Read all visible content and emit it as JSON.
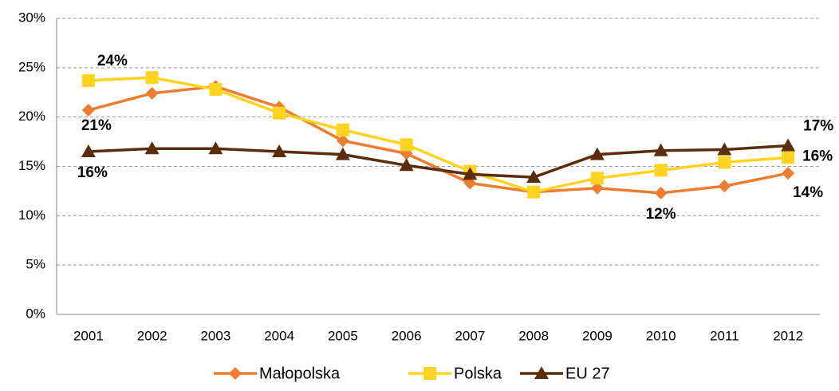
{
  "chart_data": {
    "type": "line",
    "categories": [
      "2001",
      "2002",
      "2003",
      "2004",
      "2005",
      "2006",
      "2007",
      "2008",
      "2009",
      "2010",
      "2011",
      "2012"
    ],
    "series": [
      {
        "name": "Małopolska",
        "color": "#ed7d31",
        "marker": "diamond",
        "values": [
          20.7,
          22.4,
          23.1,
          21.0,
          17.6,
          16.3,
          13.3,
          12.4,
          12.8,
          12.3,
          13.0,
          14.3
        ],
        "value_labels": [
          "21%",
          null,
          null,
          null,
          null,
          null,
          null,
          null,
          null,
          "12%",
          null,
          "14%"
        ]
      },
      {
        "name": "Polska",
        "color": "#ffd320",
        "marker": "square",
        "values": [
          23.7,
          24.0,
          22.8,
          20.4,
          18.7,
          17.2,
          14.5,
          12.4,
          13.8,
          14.6,
          15.4,
          15.9
        ],
        "value_labels": [
          "24%",
          null,
          null,
          null,
          null,
          null,
          null,
          null,
          null,
          null,
          null,
          "16%"
        ]
      },
      {
        "name": "EU 27",
        "color": "#5a2d0c",
        "marker": "triangle",
        "values": [
          16.5,
          16.8,
          16.8,
          16.5,
          16.2,
          15.1,
          14.2,
          13.9,
          16.2,
          16.6,
          16.7,
          17.1
        ],
        "value_labels": [
          "16%",
          null,
          null,
          null,
          null,
          null,
          null,
          null,
          null,
          null,
          null,
          "17%"
        ]
      }
    ],
    "ylim": [
      0,
      30
    ],
    "yticks": [
      {
        "value": 0,
        "label": "0%"
      },
      {
        "value": 5,
        "label": "5%"
      },
      {
        "value": 10,
        "label": "10%"
      },
      {
        "value": 15,
        "label": "15%"
      },
      {
        "value": 20,
        "label": "20%"
      },
      {
        "value": 25,
        "label": "25%"
      },
      {
        "value": 30,
        "label": "30%"
      }
    ],
    "grid": true,
    "legend": "bottom"
  }
}
